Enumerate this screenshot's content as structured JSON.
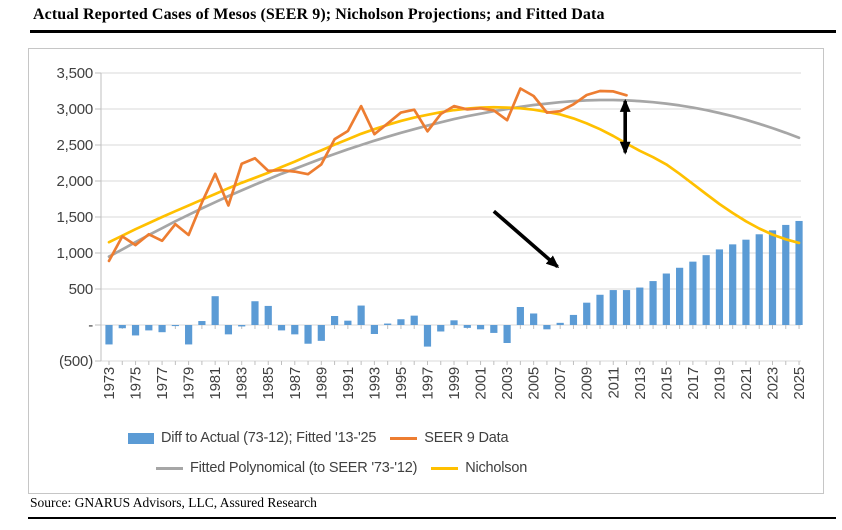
{
  "page": {
    "title": "Actual Reported Cases of Mesos (SEER 9); Nicholson Projections; and Fitted Data",
    "source": "Source: GNARUS Advisors, LLC, Assured Research"
  },
  "chart_data": {
    "type": "bar+line combo",
    "title": "Actual Reported Cases of Mesos (SEER 9); Nicholson Projections; and Fitted Data",
    "xlabel": "",
    "ylabel": "",
    "ylim": [
      -500,
      3500
    ],
    "ytick_step": 500,
    "grid": true,
    "legend_position": "bottom",
    "yticks": [
      {
        "value": 3500,
        "label": "3,500"
      },
      {
        "value": 3000,
        "label": "3,000"
      },
      {
        "value": 2500,
        "label": "2,500"
      },
      {
        "value": 2000,
        "label": "2,000"
      },
      {
        "value": 1500,
        "label": "1,500"
      },
      {
        "value": 1000,
        "label": "1,000"
      },
      {
        "value": 500,
        "label": "500"
      },
      {
        "value": 0,
        "label": "-"
      },
      {
        "value": -500,
        "label": "(500)"
      }
    ],
    "years": [
      1973,
      1974,
      1975,
      1976,
      1977,
      1978,
      1979,
      1980,
      1981,
      1982,
      1983,
      1984,
      1985,
      1986,
      1987,
      1988,
      1989,
      1990,
      1991,
      1992,
      1993,
      1994,
      1995,
      1996,
      1997,
      1998,
      1999,
      2000,
      2001,
      2002,
      2003,
      2004,
      2005,
      2006,
      2007,
      2008,
      2009,
      2010,
      2011,
      2012,
      2013,
      2014,
      2015,
      2016,
      2017,
      2018,
      2019,
      2020,
      2021,
      2022,
      2023,
      2024,
      2025
    ],
    "xtick_years": [
      1973,
      1975,
      1977,
      1979,
      1981,
      1983,
      1985,
      1987,
      1989,
      1991,
      1993,
      1995,
      1997,
      1999,
      2001,
      2003,
      2005,
      2007,
      2009,
      2011,
      2013,
      2015,
      2017,
      2019,
      2021,
      2023,
      2025
    ],
    "series": [
      {
        "name": "Diff to Actual (73-12); Fitted '13-'25",
        "type": "bar",
        "color": "#5B9BD5",
        "values": [
          -270,
          -45,
          -145,
          -75,
          -100,
          -15,
          -270,
          55,
          400,
          -130,
          -20,
          330,
          265,
          -75,
          -130,
          -260,
          -220,
          125,
          60,
          270,
          -125,
          20,
          80,
          130,
          -300,
          -90,
          65,
          -40,
          -60,
          -110,
          -250,
          250,
          160,
          -60,
          30,
          140,
          310,
          420,
          485,
          485,
          520,
          610,
          715,
          795,
          880,
          970,
          1050,
          1120,
          1185,
          1260,
          1315,
          1390,
          1445
        ]
      },
      {
        "name": "SEER 9 Data",
        "type": "line",
        "color": "#ED7D31",
        "values": [
          890,
          1230,
          1110,
          1260,
          1170,
          1400,
          1250,
          1700,
          2100,
          1660,
          2240,
          2315,
          2140,
          2150,
          2130,
          2095,
          2230,
          2580,
          2695,
          3040,
          2650,
          2800,
          2950,
          2990,
          2690,
          2930,
          3040,
          2995,
          3010,
          2980,
          2845,
          3285,
          3180,
          2950,
          2970,
          3065,
          3195,
          3250,
          3245,
          3190,
          null,
          null,
          null,
          null,
          null,
          null,
          null,
          null,
          null,
          null,
          null,
          null,
          null
        ]
      },
      {
        "name": "Fitted Polynomical (to SEER '73-'12)",
        "type": "line",
        "color": "#A6A6A6",
        "values": [
          950,
          1050,
          1150,
          1250,
          1345,
          1440,
          1530,
          1620,
          1705,
          1790,
          1870,
          1950,
          2025,
          2100,
          2170,
          2240,
          2310,
          2375,
          2440,
          2500,
          2560,
          2615,
          2670,
          2720,
          2770,
          2815,
          2860,
          2900,
          2935,
          2970,
          3000,
          3030,
          3055,
          3075,
          3095,
          3110,
          3120,
          3125,
          3125,
          3120,
          3110,
          3095,
          3075,
          3050,
          3020,
          2985,
          2945,
          2900,
          2850,
          2795,
          2735,
          2670,
          2600
        ]
      },
      {
        "name": "Nicholson",
        "type": "line",
        "color": "#FFC000",
        "values": [
          1150,
          1240,
          1330,
          1415,
          1500,
          1580,
          1660,
          1740,
          1820,
          1900,
          1975,
          2045,
          2115,
          2195,
          2270,
          2350,
          2425,
          2505,
          2580,
          2655,
          2720,
          2780,
          2835,
          2880,
          2920,
          2955,
          2985,
          3005,
          3020,
          3025,
          3020,
          3010,
          2990,
          2960,
          2925,
          2870,
          2800,
          2720,
          2625,
          2520,
          2420,
          2330,
          2230,
          2100,
          1960,
          1820,
          1680,
          1555,
          1440,
          1340,
          1255,
          1190,
          1140
        ]
      }
    ],
    "legend_rows": [
      [
        0,
        1
      ],
      [
        2,
        3
      ]
    ],
    "annotations": [
      {
        "name": "downward-trend-arrow",
        "type": "arrow",
        "double": false,
        "x1": 2002.0,
        "y1": 1580,
        "x2": 2006.8,
        "y2": 810,
        "color": "#000000"
      },
      {
        "name": "gap-double-arrow",
        "type": "arrow",
        "double": true,
        "x1": 2011.9,
        "y1": 3110,
        "x2": 2011.9,
        "y2": 2395,
        "color": "#000000"
      }
    ]
  }
}
